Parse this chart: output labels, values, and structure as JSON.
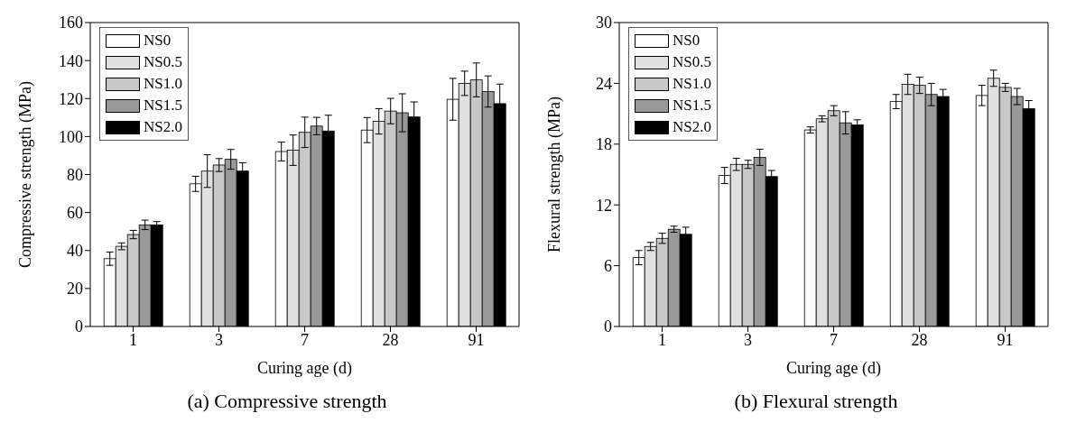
{
  "chart_data": [
    {
      "type": "bar",
      "xlabel": "Curing age (d)",
      "ylabel": "Compressive strength (MPa)",
      "categories": [
        "1",
        "3",
        "7",
        "28",
        "91"
      ],
      "ylim": [
        0,
        160
      ],
      "yticks": [
        0,
        20,
        40,
        60,
        80,
        100,
        120,
        140,
        160
      ],
      "legend": "top left",
      "grid": false,
      "annotations": [
        "(a) Compressive strength"
      ],
      "series": [
        {
          "name": "NS0",
          "color": "#ffffff",
          "values": [
            35.7,
            75.1,
            92.1,
            103.4,
            119.6
          ],
          "errors": [
            3.5,
            4.0,
            5.0,
            6.6,
            11.0
          ]
        },
        {
          "name": "NS0.5",
          "color": "#e0e0e0",
          "values": [
            42.2,
            81.8,
            92.8,
            108.0,
            128.0
          ],
          "errors": [
            1.8,
            8.6,
            8.0,
            6.7,
            6.4
          ]
        },
        {
          "name": "NS1.0",
          "color": "#c8c8c8",
          "values": [
            48.4,
            85.0,
            102.2,
            113.4,
            129.8
          ],
          "errors": [
            2.2,
            3.4,
            8.0,
            6.7,
            8.9
          ]
        },
        {
          "name": "NS1.5",
          "color": "#999999",
          "values": [
            53.5,
            88.0,
            105.5,
            112.5,
            123.7
          ],
          "errors": [
            2.5,
            5.2,
            4.6,
            10.0,
            8.2
          ]
        },
        {
          "name": "NS2.0",
          "color": "#000000",
          "values": [
            53.5,
            81.8,
            102.9,
            110.3,
            117.3
          ],
          "errors": [
            1.7,
            4.4,
            8.3,
            7.9,
            10.3
          ]
        }
      ]
    },
    {
      "type": "bar",
      "xlabel": "Curing age (d)",
      "ylabel": "Flexural strength (MPa)",
      "categories": [
        "1",
        "3",
        "7",
        "28",
        "91"
      ],
      "ylim": [
        0,
        30
      ],
      "yticks": [
        0,
        6,
        12,
        18,
        24,
        30
      ],
      "legend": "top left",
      "grid": false,
      "annotations": [
        "(b) Flexural strength"
      ],
      "series": [
        {
          "name": "NS0",
          "color": "#ffffff",
          "values": [
            6.8,
            14.9,
            19.4,
            22.2,
            22.8
          ],
          "errors": [
            0.7,
            0.8,
            0.3,
            0.7,
            1.0
          ]
        },
        {
          "name": "NS0.5",
          "color": "#e0e0e0",
          "values": [
            7.9,
            16.0,
            20.5,
            23.9,
            24.5
          ],
          "errors": [
            0.4,
            0.6,
            0.3,
            1.0,
            0.8
          ]
        },
        {
          "name": "NS1.0",
          "color": "#c8c8c8",
          "values": [
            8.7,
            16.0,
            21.3,
            23.8,
            23.6
          ],
          "errors": [
            0.5,
            0.4,
            0.5,
            0.8,
            0.4
          ]
        },
        {
          "name": "NS1.5",
          "color": "#999999",
          "values": [
            9.6,
            16.7,
            20.1,
            22.9,
            22.7
          ],
          "errors": [
            0.3,
            0.8,
            1.1,
            1.1,
            0.8
          ]
        },
        {
          "name": "NS2.0",
          "color": "#000000",
          "values": [
            9.1,
            14.8,
            19.9,
            22.7,
            21.5
          ],
          "errors": [
            0.7,
            0.6,
            0.5,
            0.7,
            0.8
          ]
        }
      ]
    }
  ]
}
